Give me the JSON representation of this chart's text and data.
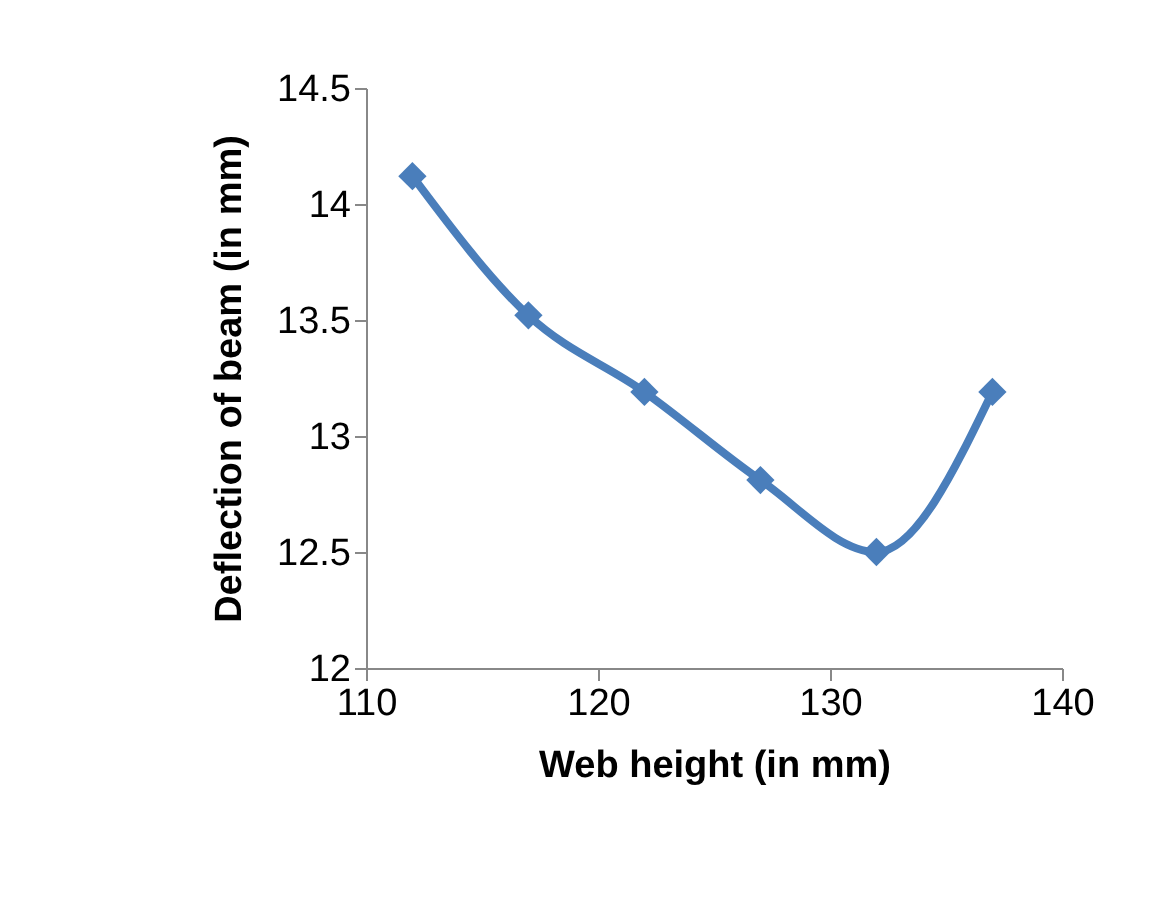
{
  "chart_data": {
    "type": "line",
    "xlabel": "Web height (in mm)",
    "ylabel": "Deflection of beam (in mm)",
    "x": [
      112,
      117,
      122,
      127,
      132,
      137
    ],
    "series": [
      {
        "color": "#4a7ebb",
        "values": [
          14.12,
          13.52,
          13.19,
          12.81,
          12.5,
          13.19
        ]
      }
    ],
    "xlim": [
      110,
      140
    ],
    "xticks": [
      110,
      120,
      130,
      140
    ],
    "ylim": [
      12,
      14.5
    ],
    "yticks": [
      12,
      12.5,
      13,
      13.5,
      14,
      14.5
    ],
    "grid": false,
    "legend": false,
    "marker": "diamond",
    "line_style": "solid"
  }
}
